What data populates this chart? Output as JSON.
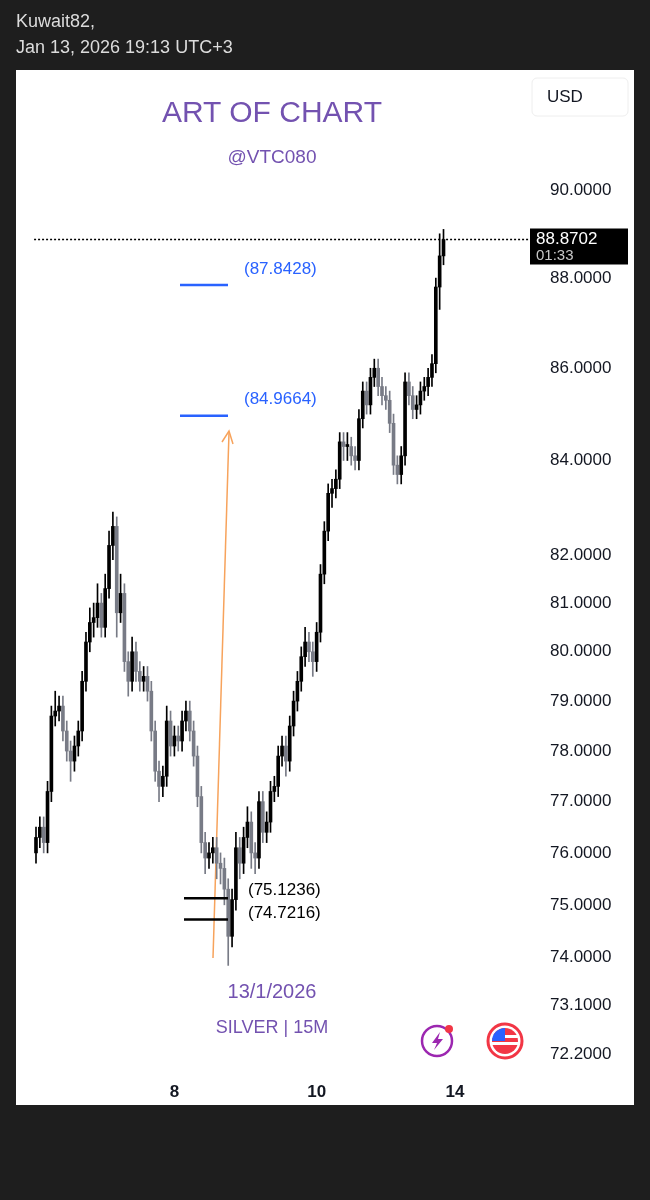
{
  "chart_data": {
    "type": "candlestick",
    "title": "ART OF CHART",
    "subtitle": "@VTC080",
    "ylabel": "USD",
    "log": "y",
    "colors": [
      "#000000",
      "#000000",
      "#787b86",
      "#000000",
      "#000000",
      "#000000",
      "#000000",
      "#787b86",
      "#787b86",
      "#787b86",
      "#000000",
      "#000000",
      "#000000",
      "#000000",
      "#000000",
      "#000000",
      "#000000",
      "#787b86",
      "#000000",
      "#000000",
      "#000000",
      "#787b86",
      "#000000",
      "#787b86",
      "#787b86",
      "#000000",
      "#787b86",
      "#787b86",
      "#000000",
      "#787b86",
      "#787b86",
      "#787b86",
      "#787b86",
      "#000000",
      "#000000",
      "#787b86",
      "#000000",
      "#787b86",
      "#000000",
      "#000000",
      "#787b86",
      "#787b86",
      "#787b86",
      "#787b86",
      "#787b86",
      "#000000",
      "#000000",
      "#787b86",
      "#787b86",
      "#787b86",
      "#787b86",
      "#000000",
      "#000000",
      "#787b86",
      "#000000",
      "#000000",
      "#787b86",
      "#787b86",
      "#000000",
      "#787b86",
      "#000000",
      "#000000",
      "#000000",
      "#000000",
      "#000000",
      "#787b86",
      "#000000",
      "#000000",
      "#000000",
      "#000000",
      "#000000",
      "#787b86",
      "#787b86",
      "#000000",
      "#000000",
      "#000000",
      "#000000",
      "#000000",
      "#000000",
      "#000000",
      "#787b86",
      "#000000",
      "#787b86",
      "#787b86",
      "#000000",
      "#000000",
      "#787b86",
      "#000000",
      "#000000",
      "#787b86",
      "#787b86",
      "#787b86",
      "#787b86",
      "#787b86",
      "#787b86",
      "#000000",
      "#000000",
      "#787b86",
      "#787b86",
      "#000000",
      "#000000",
      "#000000",
      "#000000",
      "#000000",
      "#000000",
      "#000000",
      "#000000",
      null,
      null,
      null,
      null,
      null,
      null,
      null,
      null,
      null,
      null,
      null,
      null,
      null,
      null,
      null,
      null,
      null,
      null,
      null,
      null,
      null,
      null
    ],
    "categories": [
      null,
      null,
      null,
      null,
      null,
      null,
      null,
      null,
      null,
      null,
      null,
      null,
      null,
      null,
      null,
      null,
      null,
      null,
      null,
      null,
      null,
      null,
      null,
      null,
      null,
      null,
      null,
      null,
      null,
      null,
      null,
      null,
      null,
      null,
      null,
      null,
      "8",
      null,
      null,
      null,
      null,
      null,
      null,
      null,
      null,
      null,
      null,
      null,
      null,
      null,
      null,
      null,
      null,
      null,
      null,
      null,
      null,
      null,
      null,
      null,
      null,
      null,
      null,
      null,
      null,
      null,
      null,
      null,
      null,
      null,
      null,
      null,
      null,
      "10",
      null,
      null,
      null,
      null,
      null,
      null,
      null,
      null,
      null,
      null,
      null,
      null,
      null,
      null,
      null,
      null,
      null,
      null,
      null,
      null,
      null,
      null,
      null,
      null,
      null,
      null,
      null,
      null,
      null,
      null,
      null,
      null,
      null,
      null,
      null,
      "14",
      null,
      null,
      null,
      null,
      null,
      null,
      null,
      null,
      null,
      null,
      null,
      null,
      null,
      null,
      null,
      null,
      null,
      null,
      null
    ],
    "ohlc": [
      [
        76.0,
        76.5,
        75.8,
        76.3
      ],
      [
        76.3,
        76.7,
        76.1,
        76.5
      ],
      [
        76.5,
        76.7,
        76.0,
        76.2
      ],
      [
        76.2,
        77.4,
        76.0,
        77.2
      ],
      [
        77.2,
        78.9,
        77.0,
        78.7
      ],
      [
        78.7,
        79.2,
        78.5,
        78.8
      ],
      [
        78.8,
        79.1,
        78.6,
        78.9
      ],
      [
        78.9,
        79.1,
        78.2,
        78.4
      ],
      [
        78.4,
        78.6,
        77.8,
        78.0
      ],
      [
        78.0,
        78.2,
        77.4,
        77.8
      ],
      [
        77.8,
        78.3,
        77.6,
        78.1
      ],
      [
        78.1,
        78.6,
        77.9,
        78.4
      ],
      [
        78.4,
        79.6,
        78.2,
        79.4
      ],
      [
        79.4,
        80.4,
        79.2,
        80.2
      ],
      [
        80.2,
        80.9,
        80.0,
        80.6
      ],
      [
        80.6,
        81.0,
        80.3,
        80.7
      ],
      [
        80.7,
        81.4,
        80.5,
        81.0
      ],
      [
        81.0,
        81.2,
        80.3,
        80.5
      ],
      [
        80.5,
        81.6,
        80.3,
        81.3
      ],
      [
        81.3,
        82.5,
        81.1,
        82.2
      ],
      [
        82.2,
        82.9,
        81.9,
        82.6
      ],
      [
        82.6,
        82.8,
        80.3,
        80.8
      ],
      [
        80.8,
        81.6,
        80.6,
        81.2
      ],
      [
        81.2,
        81.4,
        79.6,
        79.8
      ],
      [
        79.8,
        80.0,
        79.1,
        79.4
      ],
      [
        79.4,
        80.3,
        79.2,
        80.0
      ],
      [
        80.0,
        80.2,
        79.4,
        79.6
      ],
      [
        79.6,
        79.8,
        79.2,
        79.4
      ],
      [
        79.4,
        79.7,
        79.2,
        79.5
      ],
      [
        79.5,
        79.7,
        79.0,
        79.2
      ],
      [
        79.2,
        79.4,
        78.2,
        78.4
      ],
      [
        78.4,
        78.6,
        77.4,
        77.6
      ],
      [
        77.6,
        77.8,
        77.0,
        77.3
      ],
      [
        77.3,
        77.7,
        77.1,
        77.5
      ],
      [
        77.5,
        78.9,
        77.3,
        78.6
      ],
      [
        78.6,
        78.8,
        77.9,
        78.1
      ],
      [
        78.1,
        78.5,
        77.9,
        78.3
      ],
      [
        78.3,
        78.5,
        78.0,
        78.2
      ],
      [
        78.2,
        78.8,
        78.0,
        78.6
      ],
      [
        78.6,
        79.0,
        78.4,
        78.8
      ],
      [
        78.8,
        79.0,
        78.2,
        78.4
      ],
      [
        78.4,
        78.6,
        77.7,
        77.9
      ],
      [
        77.9,
        78.1,
        76.9,
        77.1
      ],
      [
        77.1,
        77.3,
        76.0,
        76.2
      ],
      [
        76.2,
        76.4,
        75.6,
        75.9
      ],
      [
        75.9,
        76.2,
        75.7,
        76.0
      ],
      [
        76.0,
        76.3,
        75.8,
        76.1
      ],
      [
        76.1,
        76.3,
        75.5,
        75.8
      ],
      [
        75.8,
        76.0,
        75.4,
        75.7
      ],
      [
        75.7,
        75.9,
        75.0,
        75.3
      ],
      [
        75.3,
        75.5,
        73.85,
        74.4
      ],
      [
        74.4,
        75.3,
        74.2,
        75.1
      ],
      [
        75.1,
        76.4,
        74.9,
        76.1
      ],
      [
        76.1,
        76.3,
        75.5,
        75.8
      ],
      [
        75.8,
        76.5,
        75.6,
        76.3
      ],
      [
        76.3,
        76.9,
        76.1,
        76.6
      ],
      [
        76.6,
        76.8,
        75.7,
        76.0
      ],
      [
        76.0,
        76.2,
        75.6,
        75.9
      ],
      [
        75.9,
        77.2,
        75.7,
        77.0
      ],
      [
        77.0,
        77.2,
        76.2,
        76.4
      ],
      [
        76.4,
        76.8,
        76.2,
        76.6
      ],
      [
        76.6,
        77.4,
        76.4,
        77.2
      ],
      [
        77.2,
        77.5,
        77.0,
        77.3
      ],
      [
        77.3,
        78.1,
        77.1,
        77.9
      ],
      [
        77.9,
        78.3,
        77.7,
        78.1
      ],
      [
        78.1,
        78.3,
        77.5,
        77.8
      ],
      [
        77.8,
        78.7,
        77.6,
        78.5
      ],
      [
        78.5,
        79.2,
        78.3,
        79.0
      ],
      [
        79.0,
        79.6,
        78.8,
        79.4
      ],
      [
        79.4,
        80.1,
        79.2,
        79.9
      ],
      [
        79.9,
        80.5,
        79.7,
        80.2
      ],
      [
        80.2,
        80.4,
        79.8,
        80.0
      ],
      [
        80.0,
        80.2,
        79.5,
        79.8
      ],
      [
        79.8,
        80.6,
        79.6,
        80.4
      ],
      [
        80.4,
        81.8,
        80.2,
        81.6
      ],
      [
        81.6,
        82.7,
        81.4,
        82.5
      ],
      [
        82.5,
        83.5,
        82.3,
        83.3
      ],
      [
        83.3,
        83.6,
        83.0,
        83.4
      ],
      [
        83.4,
        83.8,
        83.2,
        83.6
      ],
      [
        83.6,
        84.6,
        83.4,
        84.4
      ],
      [
        84.4,
        84.6,
        84.0,
        84.3
      ],
      [
        84.3,
        84.6,
        84.0,
        84.3
      ],
      [
        84.3,
        84.5,
        83.9,
        84.1
      ],
      [
        84.1,
        84.3,
        83.8,
        84.0
      ],
      [
        84.0,
        85.1,
        83.8,
        84.9
      ],
      [
        84.9,
        85.7,
        84.7,
        85.5
      ],
      [
        85.5,
        85.7,
        85.0,
        85.2
      ],
      [
        85.2,
        86.0,
        85.0,
        85.8
      ],
      [
        85.8,
        86.2,
        85.6,
        86.0
      ],
      [
        86.0,
        86.2,
        85.4,
        85.6
      ],
      [
        85.6,
        85.8,
        85.2,
        85.4
      ],
      [
        85.4,
        85.6,
        85.1,
        85.3
      ],
      [
        85.3,
        85.5,
        84.6,
        84.8
      ],
      [
        84.8,
        85.0,
        83.7,
        83.9
      ],
      [
        83.9,
        84.1,
        83.5,
        83.7
      ],
      [
        83.7,
        84.3,
        83.5,
        84.1
      ],
      [
        84.1,
        85.9,
        83.9,
        85.7
      ],
      [
        85.7,
        85.9,
        85.2,
        85.4
      ],
      [
        85.4,
        85.6,
        84.9,
        85.1
      ],
      [
        85.1,
        85.4,
        84.9,
        85.2
      ],
      [
        85.2,
        85.7,
        85.0,
        85.5
      ],
      [
        85.5,
        85.8,
        85.3,
        85.6
      ],
      [
        85.6,
        86.0,
        85.4,
        85.8
      ],
      [
        85.8,
        86.3,
        85.6,
        86.1
      ],
      [
        86.1,
        88.0,
        85.9,
        87.8
      ],
      [
        87.8,
        89.0,
        87.3,
        88.5
      ],
      [
        88.5,
        89.1,
        88.3,
        88.8702
      ],
      null,
      null,
      null,
      null,
      null,
      null,
      null,
      null,
      null,
      null,
      null,
      null,
      null,
      null,
      null,
      null,
      null,
      null,
      null,
      null,
      null,
      null
    ],
    "ylim": [
      72.2,
      90
    ],
    "yticks": [
      {
        "value": 72.2,
        "label": "72.2000"
      },
      {
        "value": 73.1,
        "label": "73.1000"
      },
      {
        "value": 74,
        "label": "74.0000"
      },
      {
        "value": 75,
        "label": "75.0000"
      },
      {
        "value": 76,
        "label": "76.0000"
      },
      {
        "value": 77,
        "label": "77.0000"
      },
      {
        "value": 78,
        "label": "78.0000"
      },
      {
        "value": 79,
        "label": "79.0000"
      },
      {
        "value": 80,
        "label": "80.0000"
      },
      {
        "value": 81,
        "label": "81.0000"
      },
      {
        "value": 82,
        "label": "82.0000"
      },
      {
        "value": 84,
        "label": "84.0000"
      },
      {
        "value": 86,
        "label": "86.0000"
      },
      {
        "value": 88,
        "label": "88.0000"
      },
      {
        "value": 90,
        "label": "90.0000"
      }
    ],
    "ref_lines": [
      {
        "axis": "y",
        "value": 87.8428,
        "label": "(87.8428)",
        "color": "#2962ff"
      },
      {
        "axis": "y",
        "value": 84.9664,
        "label": "(84.9664)",
        "color": "#2962ff"
      },
      {
        "axis": "y",
        "value": 75.1236,
        "label": "(75.1236)",
        "color": "#000000"
      },
      {
        "axis": "y",
        "value": 74.7216,
        "label": "(74.7216)",
        "color": "#000000"
      },
      {
        "axis": "y",
        "value": 88.8702,
        "label": "88.8702",
        "color": "#000000",
        "line_style": "dotted"
      }
    ],
    "annotations": [
      "Kuwait82,",
      "Jan 13, 2026 19:13 UTC+3",
      "13/1/2026",
      "SILVER | 15M",
      "01:33"
    ]
  }
}
